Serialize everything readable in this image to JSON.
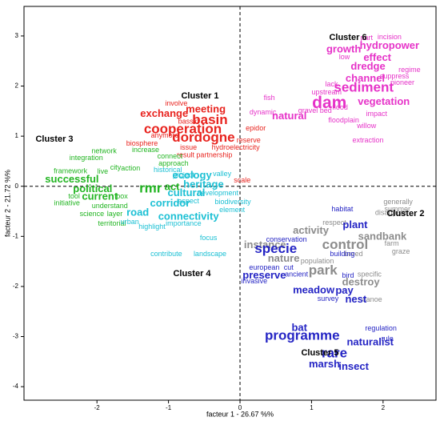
{
  "chart_data": {
    "type": "word-scatter",
    "x_label": "facteur 1 - 26.67 %%",
    "y_label": "facteur 2 - 21.72 %%",
    "xlim": [
      -3.02,
      2.74
    ],
    "ylim": [
      -4.27,
      3.59
    ],
    "xticks": [
      -2,
      -1,
      0,
      1,
      2
    ],
    "yticks": [
      -4,
      -3,
      -2,
      -1,
      0,
      1,
      2,
      3
    ],
    "zero_lines": true,
    "series": [
      {
        "name": "Cluster 1",
        "color": "#e8231e",
        "labels": [
          "basin",
          "cooperation",
          "dordogne",
          "exchange",
          "meeting",
          "involve",
          "bassin",
          "issue",
          "hydroelectricity",
          "partnership",
          "epidor",
          "reserve",
          "biosphere",
          "anymore",
          "result",
          "scale"
        ],
        "x": [
          -0.42,
          -0.8,
          -0.51,
          -1.06,
          -0.48,
          -0.89,
          -0.72,
          -0.72,
          -0.06,
          -0.36,
          0.22,
          0.12,
          -1.37,
          -1.05,
          -0.76,
          0.03
        ],
        "values": [
          1.31,
          1.13,
          0.96,
          1.44,
          1.53,
          1.65,
          1.29,
          0.77,
          0.77,
          0.62,
          1.15,
          0.91,
          0.85,
          1.01,
          0.62,
          0.11
        ],
        "sizes": [
          3,
          3,
          3,
          2,
          2,
          1,
          1,
          1,
          1,
          1,
          1,
          1,
          1,
          1,
          1,
          1
        ]
      },
      {
        "name": "Cluster 2",
        "color": "#8c8c8c",
        "labels": [
          "control",
          "sandbank",
          "activity",
          "nature",
          "park",
          "destroy",
          "population",
          "generally",
          "summer",
          "disappear",
          "respect",
          "farm",
          "graze",
          "canoe",
          "instance",
          "specific",
          "breed"
        ],
        "x": [
          1.47,
          1.99,
          0.99,
          0.61,
          1.16,
          1.69,
          1.08,
          2.21,
          2.2,
          2.11,
          1.32,
          2.12,
          2.25,
          1.85,
          0.35,
          1.81,
          1.59
        ],
        "values": [
          -1.18,
          -1.01,
          -0.89,
          -1.45,
          -1.69,
          -1.92,
          -1.5,
          -0.32,
          -0.46,
          -0.53,
          -0.73,
          -1.15,
          -1.31,
          -2.27,
          -1.18,
          -1.76,
          -1.36
        ],
        "sizes": [
          3,
          2,
          2,
          2,
          3,
          2,
          1,
          1,
          1,
          1,
          1,
          1,
          1,
          1,
          2,
          1,
          1
        ]
      },
      {
        "name": "Cluster 3",
        "color": "#22b522",
        "labels": [
          "rmr",
          "act",
          "successful",
          "political",
          "current",
          "action",
          "increase",
          "approach",
          "connect",
          "integration",
          "city",
          "tool",
          "initiative",
          "understand",
          "science",
          "layer",
          "territorial",
          "box",
          "live",
          "framework",
          "network"
        ],
        "x": [
          -1.25,
          -0.95,
          -2.35,
          -2.06,
          -1.96,
          -1.53,
          -1.32,
          -0.93,
          -0.98,
          -2.15,
          -1.74,
          -2.32,
          -2.42,
          -1.82,
          -2.07,
          -1.75,
          -1.79,
          -1.65,
          -1.92,
          -2.37,
          -1.9
        ],
        "values": [
          -0.05,
          -0.02,
          0.13,
          -0.06,
          -0.21,
          0.35,
          0.72,
          0.45,
          0.59,
          0.56,
          0.37,
          -0.21,
          -0.34,
          -0.4,
          -0.56,
          -0.56,
          -0.75,
          -0.21,
          0.29,
          0.3,
          0.7
        ],
        "sizes": [
          3,
          2,
          2,
          2,
          2,
          1,
          1,
          1,
          1,
          1,
          1,
          1,
          1,
          1,
          1,
          1,
          1,
          1,
          1,
          1,
          1
        ]
      },
      {
        "name": "Cluster 4",
        "color": "#1cc0d4",
        "labels": [
          "corridor",
          "road",
          "ecology",
          "heritage",
          "cultural",
          "development",
          "historical",
          "connectivity",
          "importance",
          "aspect",
          "highlight",
          "urban",
          "focus",
          "landscape",
          "contribute",
          "valley",
          "element",
          "biodiversity",
          "project"
        ],
        "x": [
          -0.98,
          -1.43,
          -0.67,
          -0.51,
          -0.75,
          -0.31,
          -1.01,
          -0.72,
          -0.79,
          -0.72,
          -1.23,
          -1.54,
          -0.44,
          -0.42,
          -1.03,
          -0.25,
          -0.11,
          -0.1,
          -0.79
        ],
        "values": [
          -0.35,
          -0.53,
          0.21,
          0.03,
          -0.14,
          -0.14,
          0.32,
          -0.61,
          -0.75,
          -0.3,
          -0.81,
          -0.72,
          -1.04,
          -1.36,
          -1.36,
          0.24,
          -0.48,
          -0.32,
          0.22
        ],
        "sizes": [
          2,
          2,
          2,
          2,
          2,
          1,
          1,
          2,
          1,
          1,
          1,
          1,
          1,
          1,
          1,
          1,
          1,
          1,
          1
        ]
      },
      {
        "name": "Cluster 5",
        "color": "#2424c4",
        "labels": [
          "specie",
          "plant",
          "programme",
          "rare",
          "meadow",
          "pay",
          "nest",
          "bat",
          "naturalist",
          "marsh",
          "insect",
          "regulation",
          "rule",
          "bird",
          "preserve",
          "conservation",
          "european",
          "building",
          "habitat",
          "cut",
          "ancient",
          "survey",
          "invasive"
        ],
        "x": [
          0.5,
          1.61,
          0.87,
          1.32,
          1.03,
          1.46,
          1.62,
          0.83,
          1.82,
          1.18,
          1.59,
          1.97,
          2.06,
          1.51,
          0.34,
          0.65,
          0.34,
          1.43,
          1.43,
          0.68,
          0.79,
          1.23,
          0.2
        ],
        "values": [
          -1.26,
          -0.78,
          -2.99,
          -3.34,
          -2.08,
          -2.09,
          -2.27,
          -2.83,
          -3.12,
          -3.56,
          -3.61,
          -2.84,
          -3.05,
          -1.79,
          -1.79,
          -1.07,
          -1.63,
          -1.36,
          -0.46,
          -1.63,
          -1.76,
          -2.25,
          -1.9
        ],
        "sizes": [
          3,
          2,
          3,
          3,
          2,
          2,
          2,
          2,
          2,
          2,
          2,
          1,
          1,
          1,
          2,
          1,
          1,
          1,
          1,
          1,
          1,
          1,
          1
        ]
      },
      {
        "name": "Cluster 6",
        "color": "#e632c8",
        "labels": [
          "sediment",
          "dam",
          "effect",
          "dredge",
          "vegetation",
          "part",
          "incision",
          "hydropower",
          "growth",
          "low",
          "regime",
          "suppress",
          "pioneer",
          "channel",
          "upstream",
          "lack",
          "natural",
          "gravel",
          "bed",
          "flood",
          "floodplain",
          "impact",
          "willow",
          "extraction",
          "fish",
          "dynamic"
        ],
        "x": [
          1.73,
          1.25,
          1.92,
          1.79,
          2.01,
          1.77,
          2.09,
          2.09,
          1.45,
          1.46,
          2.37,
          2.16,
          2.27,
          1.75,
          1.21,
          1.28,
          0.69,
          0.95,
          1.2,
          1.4,
          1.45,
          1.91,
          1.77,
          1.79,
          0.41,
          0.32
        ],
        "values": [
          1.96,
          1.65,
          2.56,
          2.38,
          1.68,
          2.96,
          2.97,
          2.8,
          2.73,
          2.57,
          2.32,
          2.19,
          2.06,
          2.14,
          1.87,
          2.03,
          1.39,
          1.5,
          1.5,
          1.57,
          1.31,
          1.44,
          1.2,
          0.91,
          1.76,
          1.47
        ],
        "sizes": [
          3,
          4,
          2,
          2,
          2,
          1,
          1,
          2,
          2,
          1,
          1,
          1,
          1,
          2,
          1,
          1,
          2,
          1,
          1,
          1,
          1,
          1,
          1,
          1,
          1,
          1
        ]
      }
    ]
  }
}
